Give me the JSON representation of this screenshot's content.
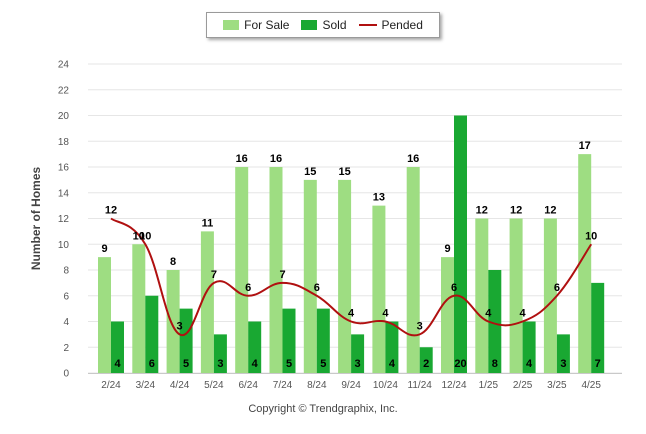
{
  "legend": {
    "for_sale": "For Sale",
    "sold": "Sold",
    "pended": "Pended"
  },
  "copyright": "Copyright © Trendgraphix, Inc.",
  "colors": {
    "for_sale": "#9edd82",
    "sold": "#19a832",
    "pended": "#b01010",
    "grid": "#e6e6e6"
  },
  "chart_data": {
    "type": "bar",
    "title": "",
    "xlabel": "",
    "ylabel": "Number of Homes",
    "ylim": [
      0,
      24
    ],
    "yticks": [
      0,
      2,
      4,
      6,
      8,
      10,
      12,
      14,
      16,
      18,
      20,
      22,
      24
    ],
    "grid": true,
    "legend_position": "top-center",
    "categories": [
      "2/24",
      "3/24",
      "4/24",
      "5/24",
      "6/24",
      "7/24",
      "8/24",
      "9/24",
      "10/24",
      "11/24",
      "12/24",
      "1/25",
      "2/25",
      "3/25",
      "4/25"
    ],
    "series": [
      {
        "name": "For Sale",
        "type": "bar",
        "values": [
          9,
          10,
          8,
          11,
          16,
          16,
          15,
          15,
          13,
          16,
          9,
          12,
          12,
          12,
          17
        ]
      },
      {
        "name": "Sold",
        "type": "bar",
        "values": [
          4,
          6,
          5,
          3,
          4,
          5,
          5,
          3,
          4,
          2,
          20,
          8,
          4,
          3,
          7
        ]
      },
      {
        "name": "Pended",
        "type": "line",
        "values": [
          12,
          10,
          3,
          7,
          6,
          7,
          6,
          4,
          4,
          3,
          6,
          4,
          4,
          6,
          10
        ]
      }
    ]
  }
}
